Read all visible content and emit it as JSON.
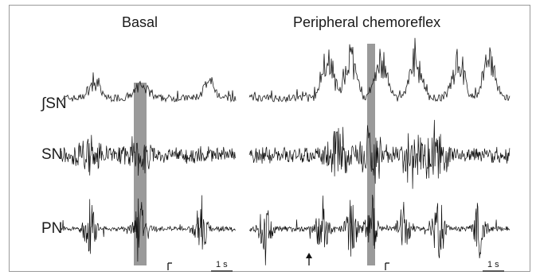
{
  "figure": {
    "panels": [
      {
        "title": "Basal"
      },
      {
        "title": "Peripheral chemoreflex"
      }
    ],
    "row_labels": [
      "∫SN",
      "SN",
      "PN"
    ],
    "scale_label": "1 s"
  }
}
